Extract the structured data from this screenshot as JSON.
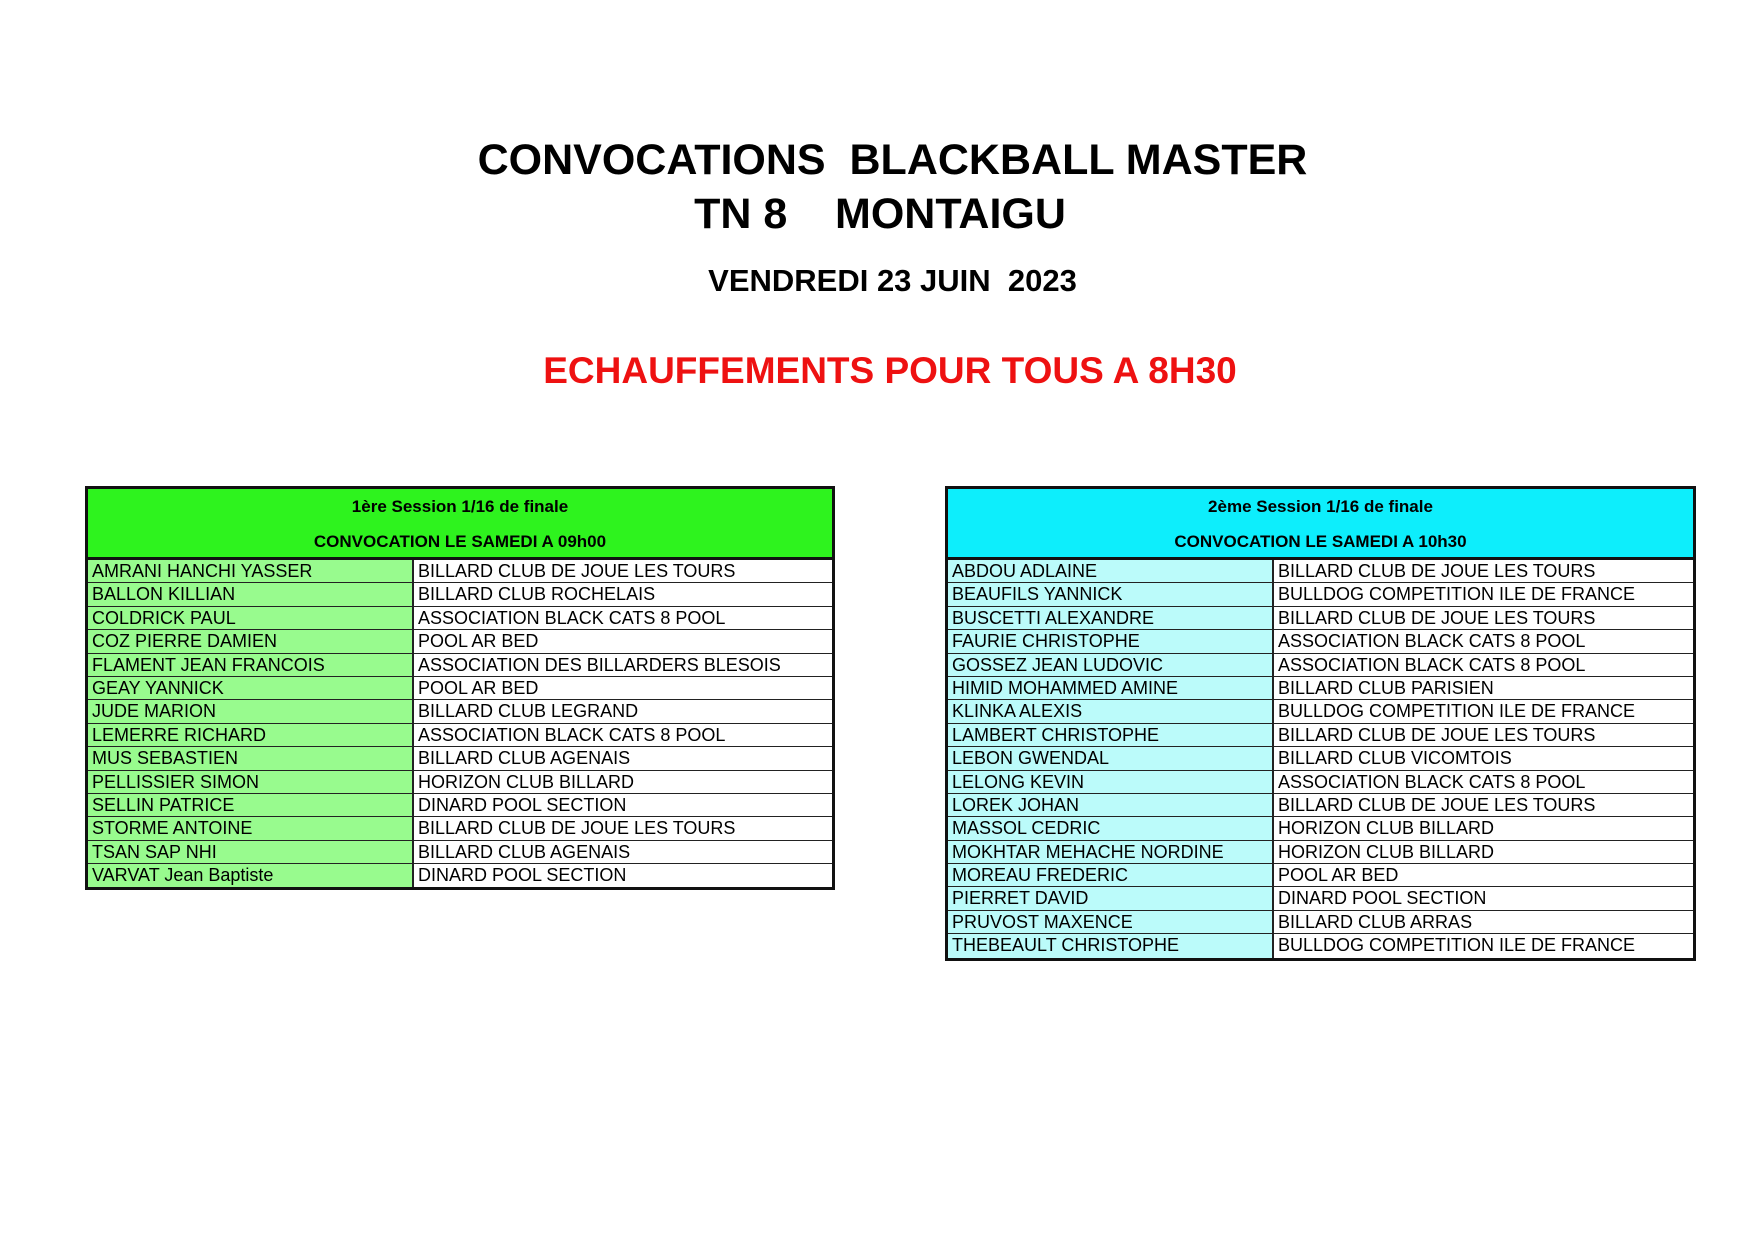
{
  "title_line1": "CONVOCATIONS  BLACKBALL MASTER",
  "title_line2": "TN 8    MONTAIGU",
  "date": "VENDREDI 23 JUIN  2023",
  "warmup": "ECHAUFFEMENTS POUR TOUS A 8H30",
  "colors": {
    "warmup": "#ee1111",
    "session1_header": "#2ef31e",
    "session1_names": "#98fb8e",
    "session2_header": "#0deefc",
    "session2_names": "#bbfbfa"
  },
  "sessions": [
    {
      "title": "1ère Session 1/16 de finale",
      "convocation": "CONVOCATION  LE SAMEDI A 09h00",
      "rows": [
        [
          "AMRANI HANCHI YASSER",
          "BILLARD CLUB DE JOUE LES TOURS"
        ],
        [
          "BALLON KILLIAN",
          "BILLARD CLUB ROCHELAIS"
        ],
        [
          "COLDRICK PAUL",
          "ASSOCIATION BLACK CATS 8 POOL"
        ],
        [
          "COZ PIERRE DAMIEN",
          "POOL AR BED"
        ],
        [
          "FLAMENT JEAN FRANCOIS",
          "ASSOCIATION DES BILLARDERS BLESOIS"
        ],
        [
          "GEAY YANNICK",
          "POOL AR BED"
        ],
        [
          "JUDE MARION",
          "BILLARD CLUB LEGRAND"
        ],
        [
          "LEMERRE RICHARD",
          "ASSOCIATION BLACK CATS 8 POOL"
        ],
        [
          "MUS SEBASTIEN",
          "BILLARD CLUB AGENAIS"
        ],
        [
          "PELLISSIER SIMON",
          "HORIZON CLUB BILLARD"
        ],
        [
          "SELLIN PATRICE",
          "DINARD POOL SECTION"
        ],
        [
          "STORME ANTOINE",
          "BILLARD CLUB DE JOUE LES TOURS"
        ],
        [
          "TSAN SAP NHI",
          "BILLARD CLUB AGENAIS"
        ],
        [
          "VARVAT Jean Baptiste",
          "DINARD POOL SECTION"
        ]
      ]
    },
    {
      "title": "2ème Session 1/16 de finale",
      "convocation": "CONVOCATION  LE SAMEDI A 10h30",
      "rows": [
        [
          "ABDOU ADLAINE",
          "BILLARD CLUB DE JOUE LES TOURS"
        ],
        [
          "BEAUFILS YANNICK",
          "BULLDOG COMPETITION ILE DE FRANCE"
        ],
        [
          "BUSCETTI ALEXANDRE",
          "BILLARD CLUB DE JOUE LES TOURS"
        ],
        [
          "FAURIE CHRISTOPHE",
          "ASSOCIATION BLACK CATS 8 POOL"
        ],
        [
          "GOSSEZ JEAN LUDOVIC",
          "ASSOCIATION BLACK CATS 8 POOL"
        ],
        [
          "HIMID MOHAMMED AMINE",
          "BILLARD CLUB PARISIEN"
        ],
        [
          "KLINKA ALEXIS",
          "BULLDOG COMPETITION ILE DE FRANCE"
        ],
        [
          "LAMBERT CHRISTOPHE",
          "BILLARD CLUB DE JOUE LES TOURS"
        ],
        [
          "LEBON GWENDAL",
          "BILLARD CLUB VICOMTOIS"
        ],
        [
          "LELONG KEVIN",
          "ASSOCIATION BLACK CATS 8 POOL"
        ],
        [
          "LOREK JOHAN",
          "BILLARD CLUB DE JOUE LES TOURS"
        ],
        [
          "MASSOL CEDRIC",
          "HORIZON CLUB BILLARD"
        ],
        [
          "MOKHTAR MEHACHE NORDINE",
          "HORIZON CLUB BILLARD"
        ],
        [
          "MOREAU FREDERIC",
          "POOL AR BED"
        ],
        [
          "PIERRET DAVID",
          "DINARD POOL SECTION"
        ],
        [
          "PRUVOST MAXENCE",
          "BILLARD CLUB ARRAS"
        ],
        [
          "THEBEAULT CHRISTOPHE",
          "BULLDOG COMPETITION ILE DE FRANCE"
        ]
      ]
    }
  ]
}
